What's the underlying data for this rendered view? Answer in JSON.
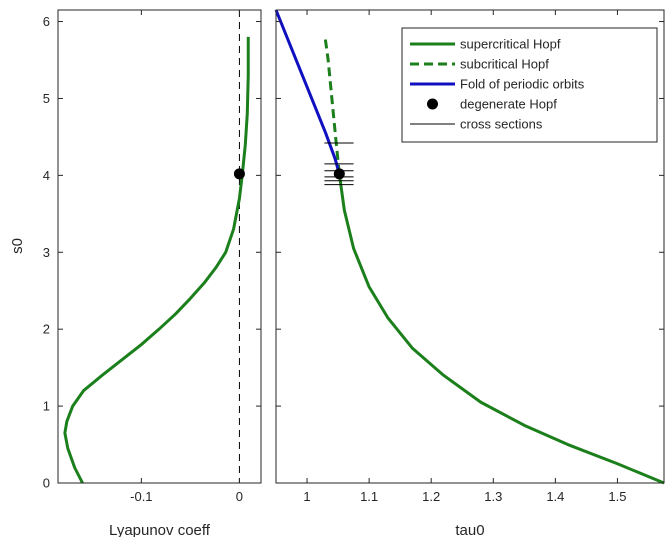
{
  "chart_data": [
    {
      "type": "line",
      "xlabel": "Lyapunov coeff",
      "ylabel": "s0",
      "xlim": [
        -0.185,
        0.022
      ],
      "ylim": [
        0,
        6.15
      ],
      "xticks": [
        -0.1,
        0
      ],
      "xtick_labels": [
        "-0.1",
        "0"
      ],
      "yticks": [
        0,
        1,
        2,
        3,
        4,
        5,
        6
      ],
      "ytick_labels": [
        "0",
        "1",
        "2",
        "3",
        "4",
        "5",
        "6"
      ],
      "grid": false,
      "series": [
        {
          "role": "first Lyapunov coefficient along Hopf branch",
          "color": "#1b7f1b",
          "style": "solid",
          "x": [
            -0.16,
            -0.168,
            -0.175,
            -0.178,
            -0.176,
            -0.17,
            -0.159,
            -0.14,
            -0.12,
            -0.1,
            -0.082,
            -0.065,
            -0.05,
            -0.036,
            -0.024,
            -0.014,
            -0.006,
            0.0,
            0.003,
            0.006,
            0.008,
            0.009,
            0.009
          ],
          "y": [
            0.0,
            0.2,
            0.45,
            0.65,
            0.8,
            1.0,
            1.2,
            1.4,
            1.6,
            1.8,
            2.0,
            2.2,
            2.4,
            2.6,
            2.8,
            3.0,
            3.3,
            3.7,
            4.02,
            4.4,
            4.8,
            5.3,
            5.8
          ]
        }
      ],
      "reference_line": {
        "x": 0,
        "style": "dashed",
        "color": "#000000"
      },
      "markers": [
        {
          "x": 0,
          "y": 4.02,
          "color": "#000000"
        }
      ]
    },
    {
      "type": "line",
      "xlabel": "tau0",
      "ylabel": "",
      "xlim": [
        0.95,
        1.575
      ],
      "ylim": [
        0,
        6.15
      ],
      "xticks": [
        1.0,
        1.1,
        1.2,
        1.3,
        1.4,
        1.5
      ],
      "xtick_labels": [
        "1",
        "1.1",
        "1.2",
        "1.3",
        "1.4",
        "1.5"
      ],
      "yticks": [
        0,
        1,
        2,
        3,
        4,
        5,
        6
      ],
      "grid": false,
      "legend_position": "top-right",
      "series": [
        {
          "name": "supercritical Hopf",
          "color": "#1b7f1b",
          "style": "solid",
          "x": [
            1.052,
            1.06,
            1.075,
            1.1,
            1.13,
            1.17,
            1.22,
            1.28,
            1.35,
            1.42,
            1.5,
            1.575
          ],
          "y": [
            4.02,
            3.55,
            3.05,
            2.55,
            2.15,
            1.75,
            1.4,
            1.05,
            0.75,
            0.5,
            0.25,
            0.0
          ]
        },
        {
          "name": "subcritical Hopf",
          "color": "#1b7f1b",
          "style": "dashed",
          "x": [
            1.052,
            1.046,
            1.04,
            1.034,
            1.029
          ],
          "y": [
            4.02,
            4.5,
            5.0,
            5.5,
            5.8
          ]
        },
        {
          "name": "Fold of periodic orbits",
          "color": "#1010c0",
          "style": "solid",
          "x": [
            0.95,
            0.97,
            0.99,
            1.01,
            1.03,
            1.045,
            1.052
          ],
          "y": [
            6.15,
            5.75,
            5.35,
            4.95,
            4.55,
            4.22,
            4.02
          ]
        },
        {
          "name": "degenerate Hopf",
          "type": "marker",
          "color": "#000000",
          "x": [
            1.052
          ],
          "y": [
            4.02
          ]
        },
        {
          "name": "cross sections",
          "type": "segments",
          "color": "#000000",
          "x_range": [
            1.028,
            1.075
          ],
          "y": [
            4.42,
            4.15,
            4.06,
            3.98,
            3.93,
            3.88
          ]
        }
      ]
    }
  ]
}
